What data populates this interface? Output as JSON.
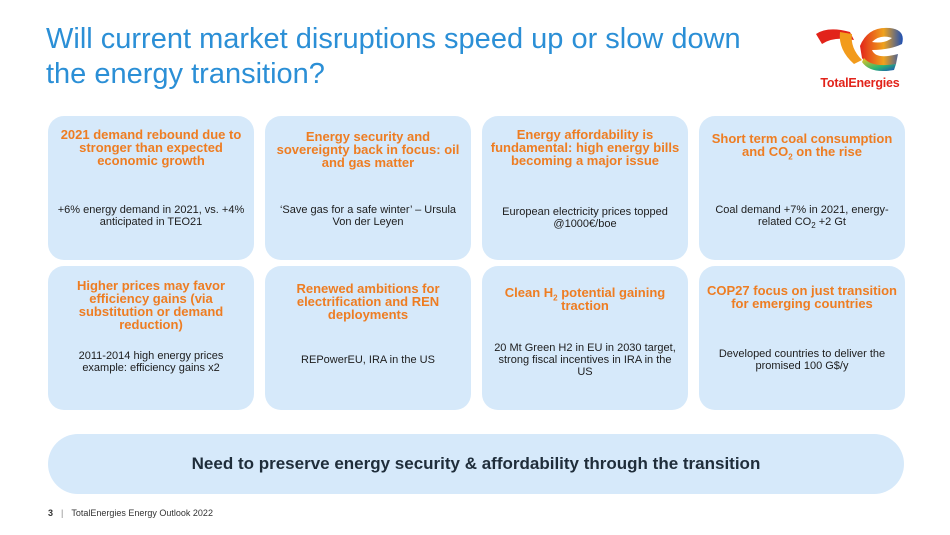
{
  "title": "Will current market disruptions speed up or slow down the energy transition?",
  "logo": {
    "text": "TotalEnergies"
  },
  "cards": [
    {
      "head": "2021 demand rebound due to stronger than expected economic growth",
      "body": "+6% energy demand in 2021, vs. +4% anticipated in TEO21"
    },
    {
      "head": "Energy security and sovereignty back in focus: oil and gas matter",
      "body": "‘Save gas for a safe winter’ – Ursula Von der Leyen"
    },
    {
      "head": "Energy affordability is fundamental: high energy bills becoming a major issue",
      "body": "European electricity prices topped @1000€/boe"
    },
    {
      "head_a": "Short term coal consumption and CO",
      "head_sub": "2",
      "head_b": " on the rise",
      "body_a": "Coal demand +7% in 2021, energy-related CO",
      "body_sub": "2",
      "body_b": " +2 Gt"
    },
    {
      "head": "Higher prices may favor efficiency gains (via substitution or demand reduction)",
      "body": "2011-2014 high energy prices example: efficiency gains x2"
    },
    {
      "head": "Renewed ambitions for electrification and REN deployments",
      "body": "REPowerEU, IRA in the US"
    },
    {
      "head_a": "Clean H",
      "head_sub": "2",
      "head_b": " potential gaining traction",
      "body": "20 Mt Green H2 in EU in 2030 target, strong fiscal incentives in IRA in the US"
    },
    {
      "head": "COP27 focus on just transition for emerging countries",
      "body": "Developed countries to deliver the promised 100 G$/y"
    }
  ],
  "banner": "Need to preserve energy security & affordability through the transition",
  "footer": {
    "page": "3",
    "separator": "|",
    "text": "TotalEnergies Energy Outlook 2022"
  },
  "colors": {
    "title": "#2b8fd6",
    "card_bg": "#d6e9fa",
    "accent": "#ee7d22"
  }
}
